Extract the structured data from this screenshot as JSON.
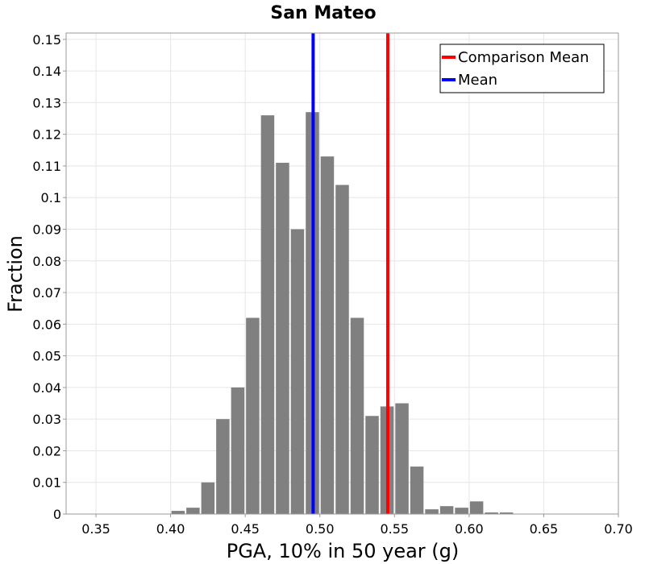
{
  "chart_data": {
    "type": "bar",
    "title": "San Mateo",
    "xlabel": "PGA, 10% in 50 year (g)",
    "ylabel": "Fraction",
    "xlim": [
      0.33,
      0.7
    ],
    "ylim": [
      0,
      0.152
    ],
    "grid": true,
    "bar_color": "#808080",
    "bin_width": 0.01,
    "bins": [
      0.405,
      0.415,
      0.425,
      0.435,
      0.445,
      0.455,
      0.465,
      0.475,
      0.485,
      0.495,
      0.505,
      0.515,
      0.525,
      0.535,
      0.545,
      0.555,
      0.565,
      0.575,
      0.585,
      0.595,
      0.605,
      0.615,
      0.625
    ],
    "values": [
      0.001,
      0.002,
      0.01,
      0.03,
      0.04,
      0.062,
      0.126,
      0.111,
      0.09,
      0.127,
      0.113,
      0.104,
      0.062,
      0.031,
      0.034,
      0.035,
      0.015,
      0.0015,
      0.0025,
      0.002,
      0.004,
      0.0005,
      0.0005
    ],
    "x_ticks": [
      {
        "value": 0.35,
        "label": "0.35"
      },
      {
        "value": 0.4,
        "label": "0.40"
      },
      {
        "value": 0.45,
        "label": "0.45"
      },
      {
        "value": 0.5,
        "label": "0.50"
      },
      {
        "value": 0.55,
        "label": "0.55"
      },
      {
        "value": 0.6,
        "label": "0.60"
      },
      {
        "value": 0.65,
        "label": "0.65"
      },
      {
        "value": 0.7,
        "label": "0.70"
      }
    ],
    "y_ticks": [
      {
        "value": 0,
        "label": "0"
      },
      {
        "value": 0.01,
        "label": "0.01"
      },
      {
        "value": 0.02,
        "label": "0.02"
      },
      {
        "value": 0.03,
        "label": "0.03"
      },
      {
        "value": 0.04,
        "label": "0.04"
      },
      {
        "value": 0.05,
        "label": "0.05"
      },
      {
        "value": 0.06,
        "label": "0.06"
      },
      {
        "value": 0.07,
        "label": "0.07"
      },
      {
        "value": 0.08,
        "label": "0.08"
      },
      {
        "value": 0.09,
        "label": "0.09"
      },
      {
        "value": 0.1,
        "label": "0.1"
      },
      {
        "value": 0.11,
        "label": "0.11"
      },
      {
        "value": 0.12,
        "label": "0.12"
      },
      {
        "value": 0.13,
        "label": "0.13"
      },
      {
        "value": 0.14,
        "label": "0.14"
      },
      {
        "value": 0.15,
        "label": "0.15"
      }
    ],
    "vlines": [
      {
        "name": "Comparison Mean",
        "x": 0.5455,
        "color": "#ff0000"
      },
      {
        "name": "Mean",
        "x": 0.4955,
        "color": "#0000ff"
      }
    ],
    "legend": {
      "position": "top-right",
      "entries": [
        {
          "label": "Comparison Mean",
          "color": "#ff0000"
        },
        {
          "label": "Mean",
          "color": "#0000ff"
        }
      ]
    }
  }
}
